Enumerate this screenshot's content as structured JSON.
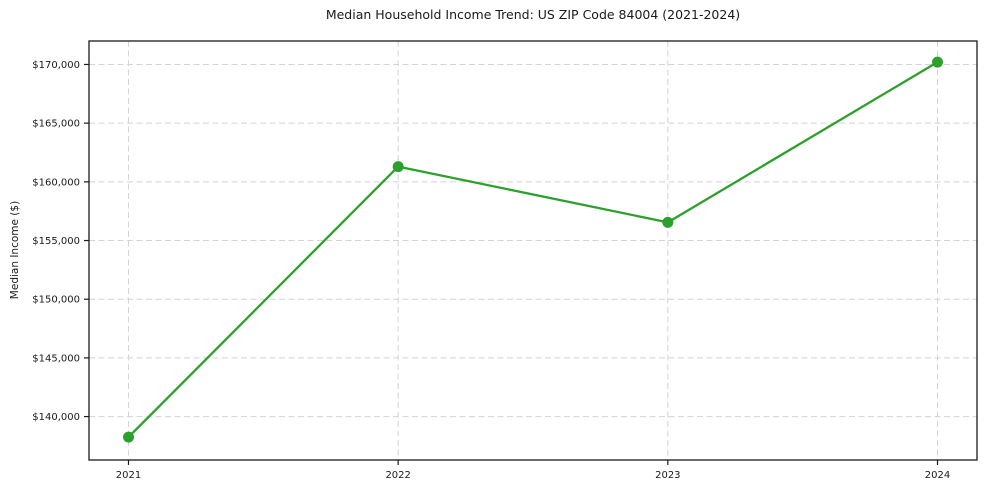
{
  "chart_data": {
    "type": "line",
    "title": "Median Household Income Trend: US ZIP Code 84004 (2021-2024)",
    "xlabel": "",
    "ylabel": "Median Income ($)",
    "x": [
      2021,
      2022,
      2023,
      2024
    ],
    "xticklabels": [
      "2021",
      "2022",
      "2023",
      "2024"
    ],
    "series": [
      {
        "name": "Median Household Income",
        "values": [
          138250,
          161300,
          156550,
          170200
        ]
      }
    ],
    "yticks": [
      140000,
      145000,
      150000,
      155000,
      160000,
      165000,
      170000
    ],
    "yticklabels": [
      "$140,000",
      "$145,000",
      "$150,000",
      "$155,000",
      "$160,000",
      "$165,000",
      "$170,000"
    ],
    "ylim": [
      136300,
      172000
    ],
    "grid": true,
    "grid_style": "dashed",
    "legend_position": "none",
    "marker": "circle",
    "colors": {
      "line": "#2ca02c",
      "marker": "#2ca02c",
      "grid": "#d4d4d4",
      "axis": "#1a1a1a",
      "text": "#1a1a1a",
      "background": "#ffffff"
    }
  }
}
